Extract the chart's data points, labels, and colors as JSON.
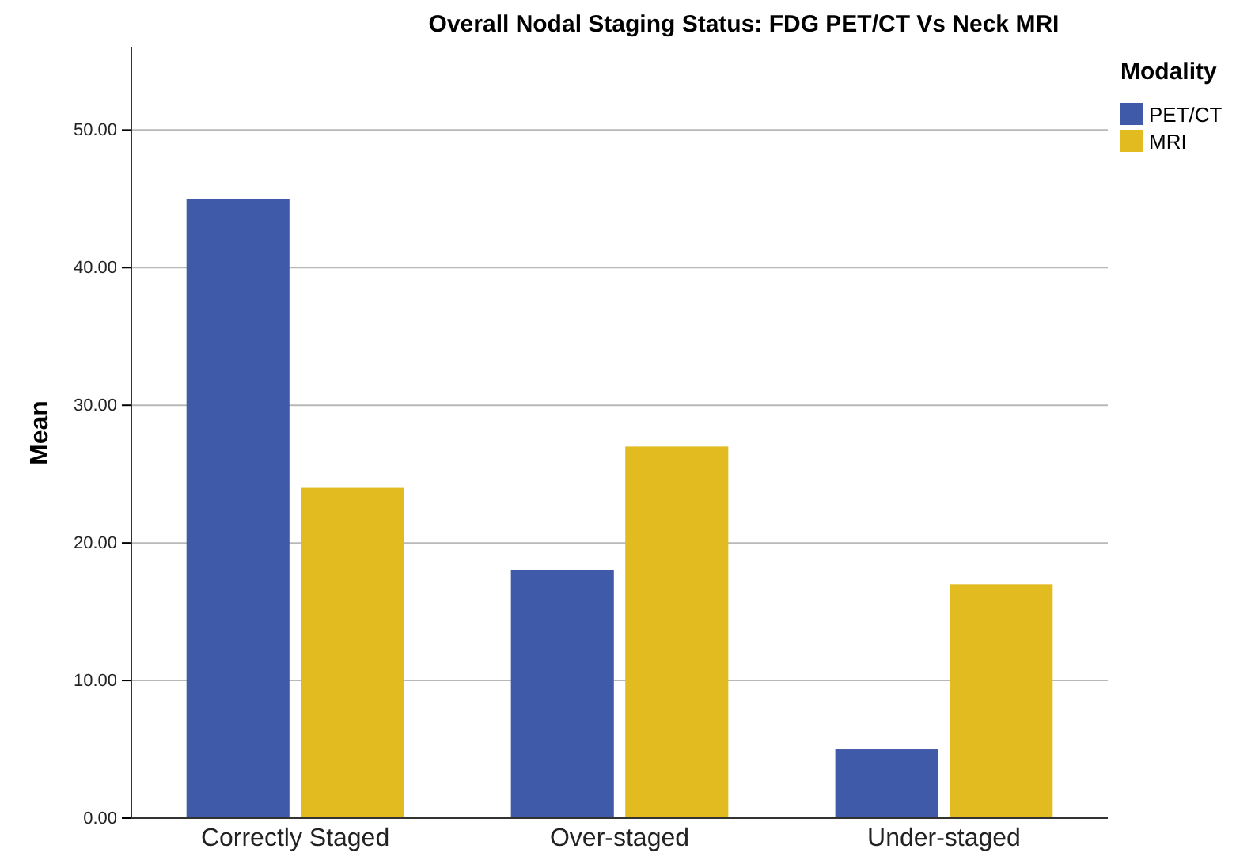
{
  "chart_data": {
    "type": "bar",
    "title": "Overall Nodal Staging Status: FDG PET/CT Vs Neck MRI",
    "ylabel": "Mean",
    "legend_title": "Modality",
    "categories": [
      "Correctly Staged",
      "Over-staged",
      "Under-staged"
    ],
    "series": [
      {
        "name": "PET/CT",
        "color": "#3f5aa8",
        "values": [
          45,
          18,
          5
        ]
      },
      {
        "name": "MRI",
        "color": "#e1bb1f",
        "values": [
          24,
          27,
          17
        ]
      }
    ],
    "ylim": [
      0,
      56
    ],
    "yticks": [
      {
        "value": 0,
        "label": "0.00"
      },
      {
        "value": 10,
        "label": "10.00"
      },
      {
        "value": 20,
        "label": "20.00"
      },
      {
        "value": 30,
        "label": "30.00"
      },
      {
        "value": 40,
        "label": "40.00"
      },
      {
        "value": 50,
        "label": "50.00"
      }
    ],
    "grid": "y",
    "legend": "top right"
  }
}
